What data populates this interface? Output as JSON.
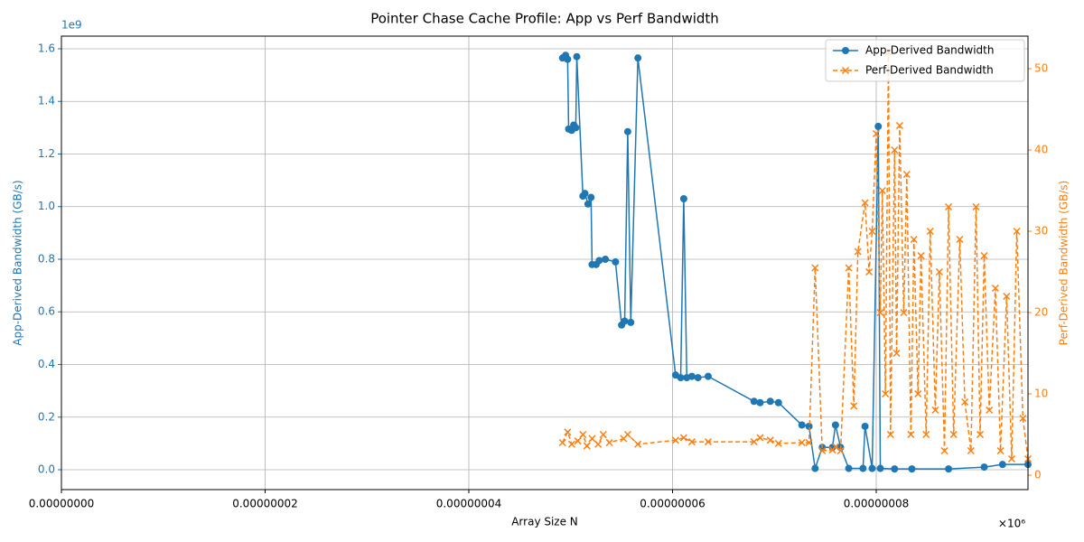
{
  "chart_data": {
    "type": "line",
    "title": "Pointer Chase Cache Profile: App vs Perf Bandwidth",
    "x_label": "Array Size N",
    "y_label": "App-Derived Bandwidth (GB/s)",
    "y2_label": "Perf-Derived Bandwidth (GB/s)",
    "x_offset_label": "×10⁶",
    "y_offset_label": "1e9",
    "grid": true,
    "legend": "upper right",
    "xlim": [
      0,
      9.49e-08
    ],
    "xticks": [
      {
        "value": 0,
        "label": "0.00000000"
      },
      {
        "value": 2e-08,
        "label": "0.00000002"
      },
      {
        "value": 4e-08,
        "label": "0.00000004"
      },
      {
        "value": 6e-08,
        "label": "0.00000006"
      },
      {
        "value": 8e-08,
        "label": "0.00000008"
      }
    ],
    "ylim": [
      -0.0755,
      1.648
    ],
    "yticks": [
      {
        "value": 0,
        "label": "0.0"
      },
      0.2,
      0.4,
      0.6,
      0.8,
      {
        "value": 1,
        "label": "1.0"
      },
      1.2,
      1.4,
      1.6
    ],
    "y2lim": [
      -1.78,
      54
    ],
    "y2ticks": [
      0,
      10,
      20,
      30,
      40,
      50
    ],
    "series": [
      {
        "name": "App-Derived Bandwidth",
        "color": "#1f77b4",
        "marker": "o",
        "dashed": false,
        "x": [
          4.92e-08,
          4.95e-08,
          4.97e-08,
          4.98e-08,
          5.01e-08,
          5.03e-08,
          5.05e-08,
          5.06e-08,
          5.12e-08,
          5.14e-08,
          5.17e-08,
          5.2e-08,
          5.21e-08,
          5.25e-08,
          5.28e-08,
          5.34e-08,
          5.44e-08,
          5.5e-08,
          5.53e-08,
          5.56e-08,
          5.59e-08,
          5.66e-08,
          6.03e-08,
          6.08e-08,
          6.11e-08,
          6.14e-08,
          6.19e-08,
          6.25e-08,
          6.35e-08,
          6.8e-08,
          6.86e-08,
          6.96e-08,
          7.04e-08,
          7.27e-08,
          7.34e-08,
          7.4e-08,
          7.47e-08,
          7.57e-08,
          7.6e-08,
          7.65e-08,
          7.73e-08,
          7.87e-08,
          7.89e-08,
          7.96e-08,
          8.02e-08,
          8.04e-08,
          8.18e-08,
          8.35e-08,
          8.71e-08,
          9.06e-08,
          9.24e-08,
          9.49e-08
        ],
        "values": [
          1.565,
          1.575,
          1.56,
          1.295,
          1.29,
          1.31,
          1.3,
          1.57,
          1.04,
          1.05,
          1.01,
          1.035,
          0.78,
          0.78,
          0.795,
          0.8,
          0.79,
          0.55,
          0.565,
          1.285,
          0.56,
          1.565,
          0.36,
          0.35,
          1.03,
          0.35,
          0.355,
          0.35,
          0.355,
          0.26,
          0.255,
          0.26,
          0.255,
          0.17,
          0.165,
          0.005,
          0.085,
          0.085,
          0.17,
          0.085,
          0.005,
          0.005,
          0.165,
          0.005,
          1.305,
          0.005,
          0.003,
          0.003,
          0.003,
          0.01,
          0.02,
          0.02
        ]
      },
      {
        "name": "Perf-Derived Bandwidth",
        "color": "#ff7f0e",
        "marker": "x",
        "dashed": true,
        "axis": "y2",
        "x": [
          4.92e-08,
          4.97e-08,
          5.01e-08,
          5.07e-08,
          5.12e-08,
          5.16e-08,
          5.21e-08,
          5.27e-08,
          5.32e-08,
          5.38e-08,
          5.52e-08,
          5.56e-08,
          5.66e-08,
          6.03e-08,
          6.11e-08,
          6.19e-08,
          6.35e-08,
          6.8e-08,
          6.86e-08,
          6.96e-08,
          7.04e-08,
          7.27e-08,
          7.34e-08,
          7.4e-08,
          7.47e-08,
          7.57e-08,
          7.6e-08,
          7.65e-08,
          7.73e-08,
          7.78e-08,
          7.82e-08,
          7.89e-08,
          7.93e-08,
          7.96e-08,
          8e-08,
          8.04e-08,
          8.06e-08,
          8.09e-08,
          8.12e-08,
          8.14e-08,
          8.18e-08,
          8.2e-08,
          8.23e-08,
          8.27e-08,
          8.3e-08,
          8.34e-08,
          8.37e-08,
          8.41e-08,
          8.44e-08,
          8.49e-08,
          8.53e-08,
          8.58e-08,
          8.62e-08,
          8.67e-08,
          8.71e-08,
          8.76e-08,
          8.82e-08,
          8.87e-08,
          8.93e-08,
          8.98e-08,
          9.02e-08,
          9.06e-08,
          9.11e-08,
          9.17e-08,
          9.22e-08,
          9.28e-08,
          9.33e-08,
          9.38e-08,
          9.44e-08,
          9.49e-08
        ],
        "values": [
          4,
          5.3,
          3.8,
          4.2,
          5,
          3.6,
          4.5,
          3.8,
          5,
          4,
          4.5,
          5,
          3.8,
          4.3,
          4.6,
          4.1,
          4.1,
          4.1,
          4.6,
          4.3,
          3.9,
          4,
          4,
          25.5,
          3,
          3.1,
          3.5,
          3,
          25.5,
          8.5,
          27.5,
          33.5,
          25,
          30,
          42,
          20,
          35,
          10,
          52,
          5,
          40,
          15,
          43,
          20,
          37,
          5,
          29,
          10,
          27,
          5,
          30,
          8,
          25,
          3,
          33,
          5,
          29,
          9,
          3,
          33,
          5,
          27,
          8,
          23,
          3,
          22,
          2,
          30,
          7,
          2
        ]
      }
    ]
  }
}
